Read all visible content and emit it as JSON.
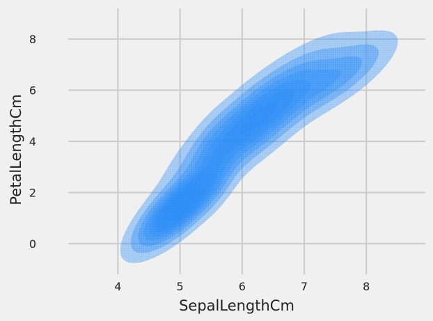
{
  "chart_data": {
    "type": "kde-contour",
    "title": "",
    "xlabel": "SepalLengthCm",
    "ylabel": "PetalLengthCm",
    "xlim": [
      3.2,
      8.95
    ],
    "ylim": [
      -1.2,
      9.2
    ],
    "x_ticks": [
      4,
      5,
      6,
      7,
      8
    ],
    "y_ticks": [
      0,
      2,
      4,
      6,
      8
    ],
    "grid": true,
    "fill_color": "#2a8ff7",
    "background": "#f0f0f0",
    "grid_color": "#cbcbcb",
    "clusters": [
      {
        "name": "",
        "center": [
          5.0,
          1.45
        ],
        "peak": 0.9
      },
      {
        "name": "",
        "center": [
          6.25,
          4.9
        ],
        "peak": 0.62
      }
    ],
    "levels": [
      0.03,
      0.09,
      0.17,
      0.26,
      0.36,
      0.46,
      0.57,
      0.7
    ]
  }
}
